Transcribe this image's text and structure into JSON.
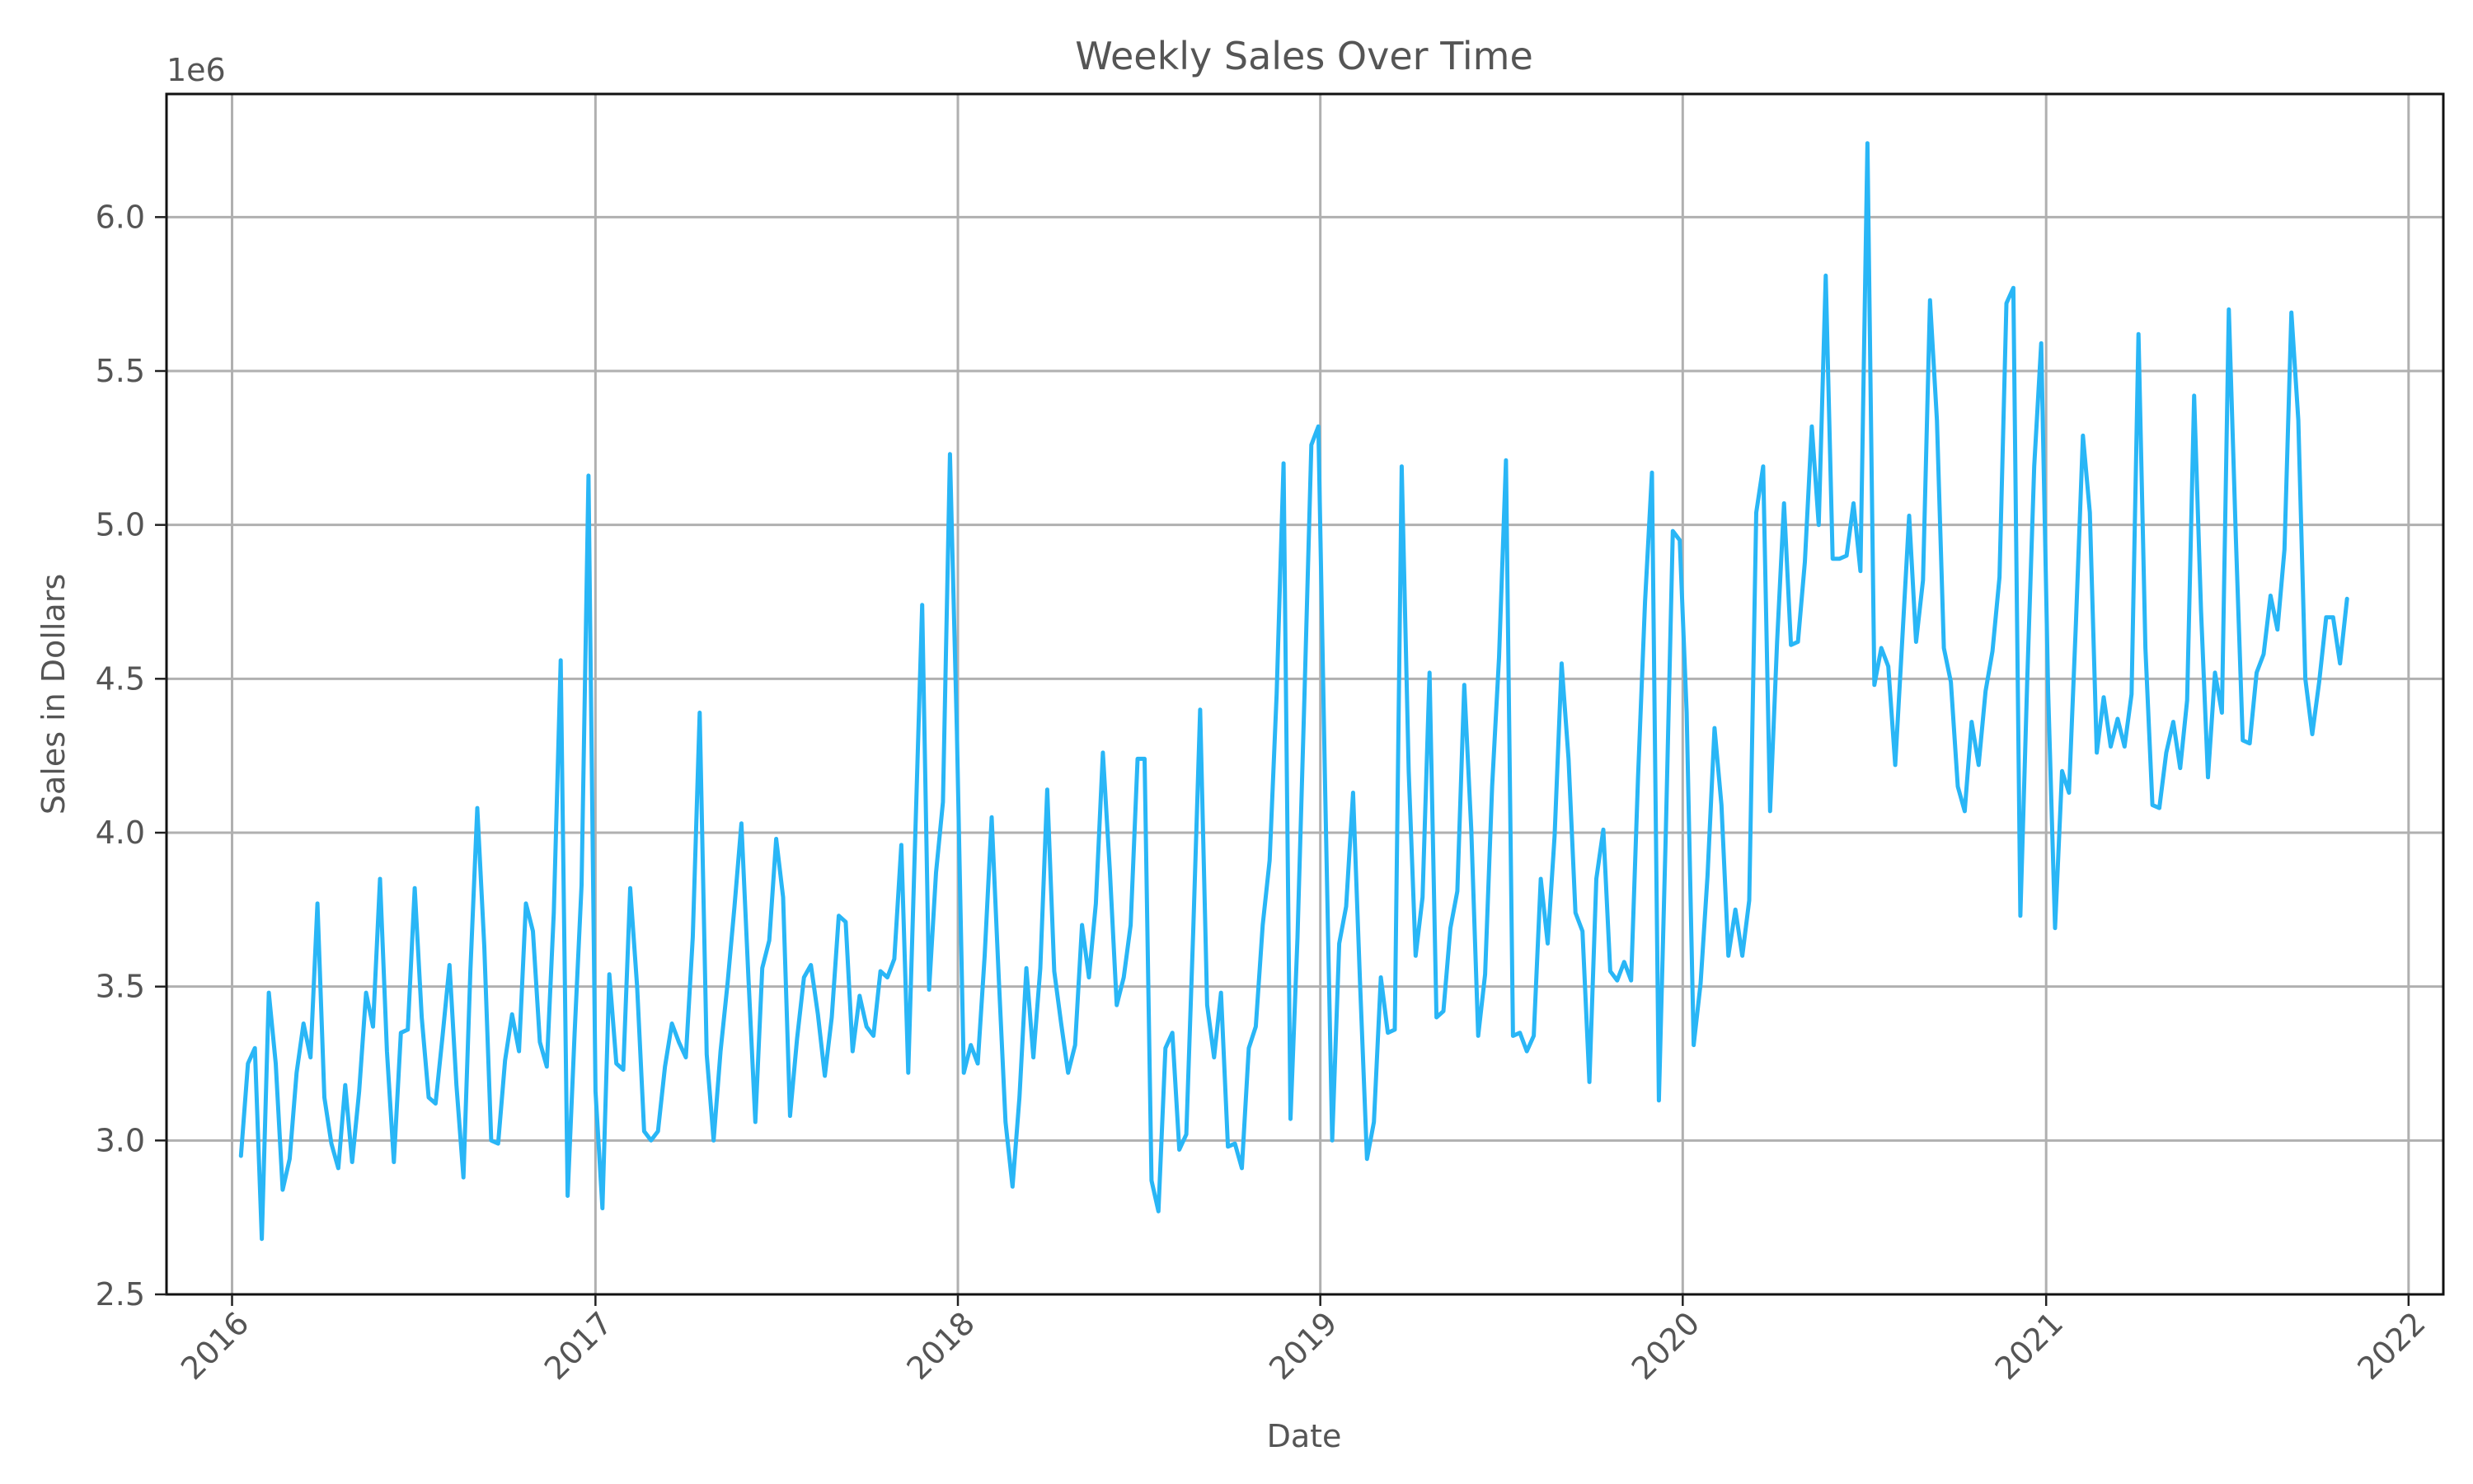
{
  "chart_data": {
    "type": "line",
    "title": "Weekly Sales Over Time",
    "xlabel": "Date",
    "ylabel": "Sales in Dollars",
    "y_offset_label": "1e6",
    "y_scale": 1000000,
    "xlim": [
      "2015-10-27",
      "2022-02-05"
    ],
    "ylim": [
      2500000,
      6400000
    ],
    "x_ticks": [
      "2016-01-01",
      "2017-01-01",
      "2018-01-01",
      "2019-01-01",
      "2020-01-01",
      "2021-01-01",
      "2022-01-01"
    ],
    "x_tick_labels": [
      "2016",
      "2017",
      "2018",
      "2019",
      "2020",
      "2021",
      "2022"
    ],
    "y_ticks": [
      2500000,
      3000000,
      3500000,
      4000000,
      4500000,
      5000000,
      5500000,
      6000000
    ],
    "y_tick_labels": [
      "2.5",
      "3.0",
      "3.5",
      "4.0",
      "4.5",
      "5.0",
      "5.5",
      "6.0"
    ],
    "grid": true,
    "line_color": "#29b6f6",
    "start_date": "2016-01-10",
    "interval_days": 7,
    "series": [
      {
        "values": [
          2950000,
          3250000,
          3300000,
          2680000,
          3480000,
          3250000,
          2840000,
          2940000,
          3220000,
          3380000,
          3270000,
          3770000,
          3140000,
          2990000,
          2910000,
          3180000,
          2930000,
          3160000,
          3480000,
          3370000,
          3850000,
          3290000,
          2930000,
          3350000,
          3360000,
          3820000,
          3400000,
          3140000,
          3120000,
          3340000,
          3570000,
          3180000,
          2880000,
          3550000,
          4080000,
          3630000,
          3000000,
          2990000,
          3260000,
          3410000,
          3290000,
          3770000,
          3680000,
          3320000,
          3240000,
          3740000,
          4560000,
          2820000,
          3350000,
          3830000,
          5160000,
          3160000,
          2780000,
          3540000,
          3250000,
          3230000,
          3820000,
          3500000,
          3030000,
          3000000,
          3030000,
          3240000,
          3380000,
          3320000,
          3270000,
          3660000,
          4390000,
          3280000,
          3000000,
          3290000,
          3510000,
          3760000,
          4030000,
          3530000,
          3060000,
          3560000,
          3650000,
          3980000,
          3790000,
          3080000,
          3330000,
          3530000,
          3570000,
          3410000,
          3210000,
          3400000,
          3730000,
          3710000,
          3290000,
          3470000,
          3370000,
          3340000,
          3550000,
          3530000,
          3590000,
          3960000,
          3220000,
          3980000,
          4740000,
          3490000,
          3870000,
          4100000,
          5230000,
          4330000,
          3220000,
          3310000,
          3250000,
          3600000,
          4050000,
          3540000,
          3060000,
          2850000,
          3140000,
          3560000,
          3270000,
          3560000,
          4140000,
          3550000,
          3380000,
          3220000,
          3310000,
          3700000,
          3530000,
          3770000,
          4260000,
          3880000,
          3440000,
          3530000,
          3700000,
          4240000,
          4240000,
          2870000,
          2770000,
          3300000,
          3350000,
          2970000,
          3020000,
          3680000,
          4400000,
          3440000,
          3270000,
          3480000,
          2980000,
          2990000,
          2910000,
          3300000,
          3370000,
          3700000,
          3910000,
          4450000,
          5200000,
          3070000,
          3660000,
          4440000,
          5260000,
          5320000,
          4120000,
          3000000,
          3640000,
          3760000,
          4130000,
          3510000,
          2940000,
          3060000,
          3530000,
          3350000,
          3360000,
          5190000,
          4200000,
          3600000,
          3790000,
          4520000,
          3400000,
          3420000,
          3690000,
          3810000,
          4480000,
          4010000,
          3340000,
          3540000,
          4150000,
          4570000,
          5210000,
          3340000,
          3350000,
          3290000,
          3340000,
          3850000,
          3640000,
          3990000,
          4550000,
          4240000,
          3740000,
          3680000,
          3190000,
          3850000,
          4010000,
          3550000,
          3520000,
          3580000,
          3520000,
          4180000,
          4750000,
          5170000,
          3130000,
          4000000,
          4980000,
          4950000,
          4390000,
          3310000,
          3510000,
          3860000,
          4340000,
          4090000,
          3600000,
          3750000,
          3600000,
          3780000,
          5040000,
          5190000,
          4070000,
          4620000,
          5070000,
          4610000,
          4620000,
          4880000,
          5320000,
          5000000,
          5810000,
          4890000,
          4890000,
          4900000,
          5070000,
          4850000,
          6240000,
          4480000,
          4600000,
          4540000,
          4220000,
          4620000,
          5030000,
          4620000,
          4820000,
          5730000,
          5340000,
          4600000,
          4490000,
          4150000,
          4070000,
          4360000,
          4220000,
          4460000,
          4590000,
          4830000,
          5720000,
          5770000,
          3730000,
          4500000,
          5190000,
          5590000,
          4460000,
          3690000,
          4200000,
          4130000,
          4680000,
          5290000,
          5040000,
          4260000,
          4440000,
          4280000,
          4370000,
          4280000,
          4450000,
          5620000,
          4600000,
          4090000,
          4080000,
          4260000,
          4360000,
          4210000,
          4430000,
          5420000,
          4720000,
          4180000,
          4520000,
          4390000,
          5700000,
          4960000,
          4300000,
          4290000,
          4520000,
          4580000,
          4770000,
          4660000,
          4920000,
          5690000,
          5340000,
          4500000,
          4320000,
          4490000,
          4700000,
          4700000,
          4550000,
          4760000
        ]
      }
    ]
  }
}
